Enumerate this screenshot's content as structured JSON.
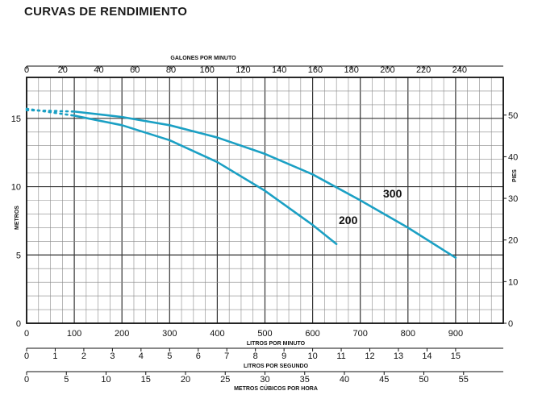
{
  "title": "CURVAS DE RENDIMIENTO",
  "chart_data": {
    "type": "line",
    "title": "CURVAS DE RENDIMIENTO",
    "xlabel": "LITROS POR MINUTO",
    "ylabel": "METROS",
    "xlim": [
      0,
      1000
    ],
    "ylim": [
      0,
      18
    ],
    "x_ticks": [
      0,
      100,
      200,
      300,
      400,
      500,
      600,
      700,
      800,
      900
    ],
    "y_ticks": [
      0,
      5,
      10,
      15
    ],
    "grid": true,
    "secondary_axes": {
      "top": {
        "label": "GALONES POR MINUTO",
        "ticks": [
          0,
          20,
          40,
          60,
          80,
          100,
          120,
          140,
          160,
          180,
          200,
          220,
          240
        ],
        "lpm_per_unit": 3.785
      },
      "right": {
        "label": "PIES",
        "ticks": [
          0,
          10,
          20,
          30,
          40,
          50
        ],
        "m_per_unit": 0.3048
      },
      "bottom_1": {
        "label": "LITROS POR SEGUNDO",
        "ticks": [
          0,
          1,
          2,
          3,
          4,
          5,
          6,
          7,
          8,
          9,
          10,
          11,
          12,
          13,
          14,
          15
        ],
        "lpm_per_unit": 60
      },
      "bottom_2": {
        "label": "METROS CÚBICOS POR HORA",
        "ticks": [
          0,
          5,
          10,
          15,
          20,
          25,
          30,
          35,
          40,
          45,
          50,
          55
        ],
        "lpm_per_unit": 16.667
      }
    },
    "series": [
      {
        "name": "200",
        "x": [
          0,
          100,
          200,
          300,
          400,
          500,
          600,
          650
        ],
        "y": [
          15.7,
          15.2,
          14.5,
          13.4,
          11.8,
          9.7,
          7.2,
          5.8
        ],
        "color": "#1ba0c4"
      },
      {
        "name": "300",
        "x": [
          0,
          100,
          200,
          300,
          400,
          500,
          600,
          700,
          800,
          900
        ],
        "y": [
          15.6,
          15.5,
          15.1,
          14.5,
          13.6,
          12.4,
          10.9,
          9.0,
          7.0,
          4.8
        ],
        "color": "#1ba0c4"
      }
    ]
  }
}
